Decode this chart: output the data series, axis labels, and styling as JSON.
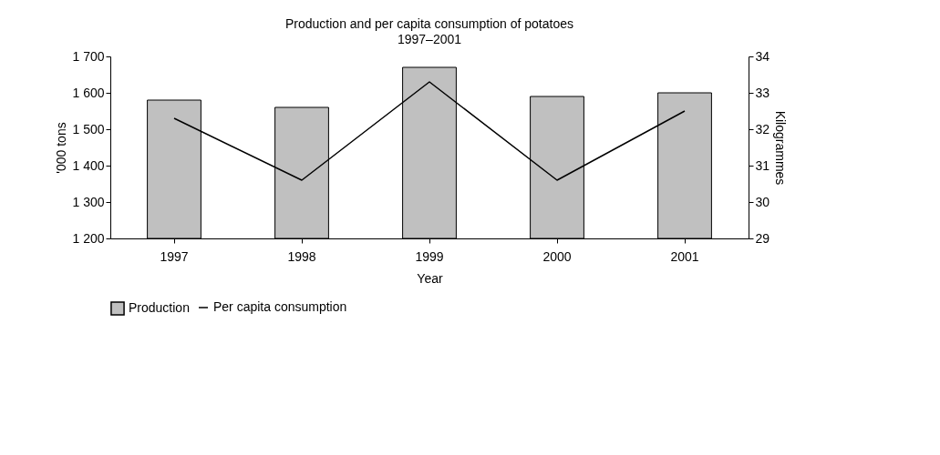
{
  "chart_data": {
    "type": "bar",
    "title": "Production and per capita consumption of potatoes",
    "subtitle": "1997–2001",
    "categories": [
      "1997",
      "1998",
      "1999",
      "2000",
      "2001"
    ],
    "xlabel": "Year",
    "ylabel": "'000 tons",
    "y2label": "Kilogrammes",
    "series": [
      {
        "name": "Production",
        "color": "#c0c0c0",
        "values": [
          1580,
          1560,
          1670,
          1590,
          1600
        ]
      },
      {
        "name": "Per capita consumption",
        "type": "line",
        "axis": "y2",
        "color": "#000000",
        "values": [
          32.3,
          30.6,
          33.3,
          30.6,
          32.5
        ]
      }
    ],
    "ylim": [
      1200,
      1700
    ],
    "yticks": [
      {
        "value": 1200,
        "label": "1 200"
      },
      {
        "value": 1300,
        "label": "1 300"
      },
      {
        "value": 1400,
        "label": "1 400"
      },
      {
        "value": 1500,
        "label": "1 500"
      },
      {
        "value": 1600,
        "label": "1 600"
      },
      {
        "value": 1700,
        "label": "1 700"
      }
    ],
    "y2lim": [
      29,
      34
    ],
    "y2ticks": [
      29,
      30,
      31,
      32,
      33,
      34
    ],
    "grid": false,
    "legend": "bottom"
  }
}
